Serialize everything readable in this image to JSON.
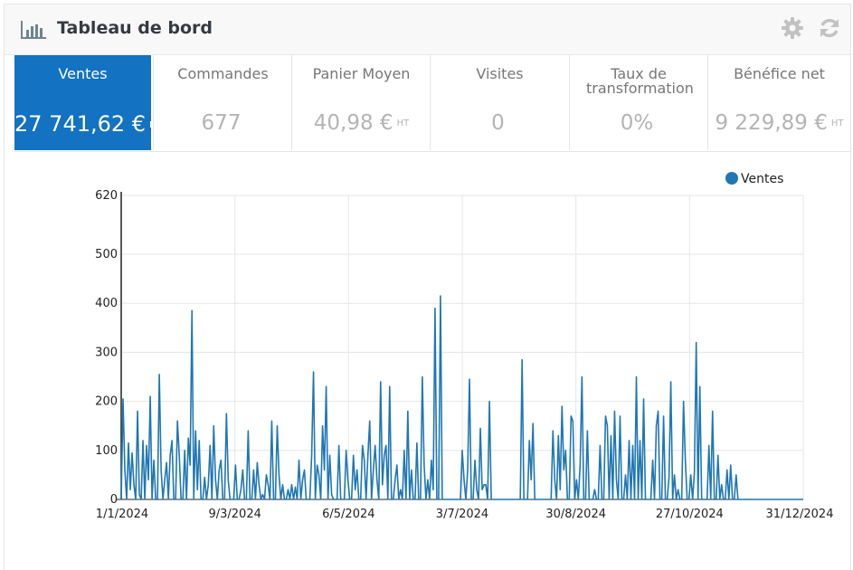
{
  "header": {
    "title": "Tableau de bord",
    "icon": "bar-chart-icon",
    "actions": [
      "gear-icon",
      "refresh-icon"
    ]
  },
  "kpis": [
    {
      "label": "Ventes",
      "value": "27 741,62 €",
      "suffix": "HT",
      "active": true
    },
    {
      "label": "Commandes",
      "value": "677",
      "suffix": ""
    },
    {
      "label": "Panier Moyen",
      "value": "40,98 €",
      "suffix": "HT"
    },
    {
      "label": "Visites",
      "value": "0",
      "suffix": ""
    },
    {
      "label": "Taux de transformation",
      "value": "0%",
      "suffix": ""
    },
    {
      "label": "Bénéfice net",
      "value": "9 229,89 €",
      "suffix": "HT"
    }
  ],
  "colors": {
    "accent": "#1372c1",
    "line": "#1f77b4",
    "muted": "#b4b4b4"
  },
  "chart_data": {
    "type": "line",
    "legend": "top-right",
    "grid": true,
    "series": [
      {
        "name": "Ventes",
        "values": [
          0,
          205,
          60,
          0,
          115,
          20,
          95,
          30,
          0,
          180,
          10,
          0,
          120,
          0,
          110,
          40,
          210,
          0,
          80,
          0,
          0,
          255,
          60,
          0,
          40,
          75,
          0,
          90,
          120,
          0,
          0,
          160,
          90,
          0,
          0,
          100,
          0,
          125,
          70,
          385,
          0,
          140,
          20,
          120,
          0,
          0,
          45,
          0,
          30,
          110,
          0,
          150,
          40,
          0,
          60,
          80,
          0,
          0,
          175,
          40,
          0,
          0,
          0,
          70,
          0,
          0,
          20,
          60,
          0,
          0,
          140,
          0,
          0,
          60,
          0,
          75,
          30,
          0,
          10,
          0,
          50,
          30,
          0,
          160,
          0,
          0,
          150,
          50,
          0,
          30,
          0,
          0,
          20,
          0,
          30,
          0,
          25,
          0,
          80,
          0,
          40,
          60,
          0,
          0,
          0,
          90,
          260,
          0,
          70,
          50,
          0,
          150,
          60,
          230,
          0,
          90,
          10,
          0,
          0,
          0,
          110,
          0,
          0,
          0,
          100,
          40,
          0,
          0,
          90,
          20,
          60,
          0,
          0,
          110,
          80,
          0,
          90,
          160,
          0,
          60,
          110,
          40,
          0,
          240,
          30,
          90,
          110,
          0,
          230,
          0,
          0,
          40,
          70,
          0,
          20,
          0,
          100,
          0,
          180,
          0,
          60,
          0,
          0,
          115,
          0,
          0,
          250,
          70,
          0,
          40,
          0,
          80,
          20,
          390,
          0,
          0,
          415,
          0,
          0,
          0,
          0,
          0,
          0,
          0,
          0,
          0,
          0,
          0,
          100,
          40,
          0,
          60,
          245,
          0,
          0,
          80,
          20,
          0,
          145,
          20,
          30,
          30,
          0,
          200,
          0,
          0,
          0,
          0,
          0,
          0,
          0,
          0,
          0,
          0,
          0,
          0,
          0,
          0,
          0,
          0,
          0,
          285,
          0,
          0,
          0,
          120,
          40,
          155,
          0,
          0,
          0,
          0,
          0,
          0,
          0,
          0,
          0,
          0,
          140,
          40,
          0,
          130,
          20,
          190,
          60,
          100,
          0,
          0,
          170,
          160,
          0,
          40,
          0,
          70,
          250,
          0,
          0,
          140,
          0,
          0,
          0,
          20,
          0,
          0,
          110,
          0,
          0,
          170,
          150,
          0,
          130,
          0,
          180,
          40,
          0,
          170,
          0,
          0,
          50,
          0,
          120,
          0,
          110,
          0,
          250,
          0,
          120,
          0,
          205,
          0,
          0,
          0,
          0,
          80,
          0,
          150,
          180,
          0,
          0,
          170,
          0,
          0,
          45,
          240,
          0,
          50,
          0,
          20,
          0,
          0,
          200,
          80,
          0,
          0,
          50,
          0,
          55,
          320,
          0,
          230,
          0,
          0,
          0,
          0,
          110,
          0,
          180,
          0,
          0,
          90,
          0,
          30,
          0,
          0,
          60,
          0,
          70,
          0,
          0,
          50,
          0,
          0,
          0,
          0,
          0,
          0,
          0,
          0,
          0,
          0,
          0,
          0,
          0,
          0,
          0,
          0,
          0,
          0,
          0,
          0,
          0,
          0,
          0,
          0,
          0,
          0,
          0,
          0,
          0,
          0,
          0,
          0,
          0,
          0,
          0,
          0,
          0
        ]
      }
    ],
    "x_ticks": [
      "1/1/2024",
      "9/3/2024",
      "6/5/2024",
      "3/7/2024",
      "30/8/2024",
      "27/10/2024",
      "31/12/2024"
    ],
    "y_ticks": [
      0,
      100,
      200,
      300,
      400,
      500,
      620
    ],
    "ylim": [
      0,
      620
    ]
  }
}
